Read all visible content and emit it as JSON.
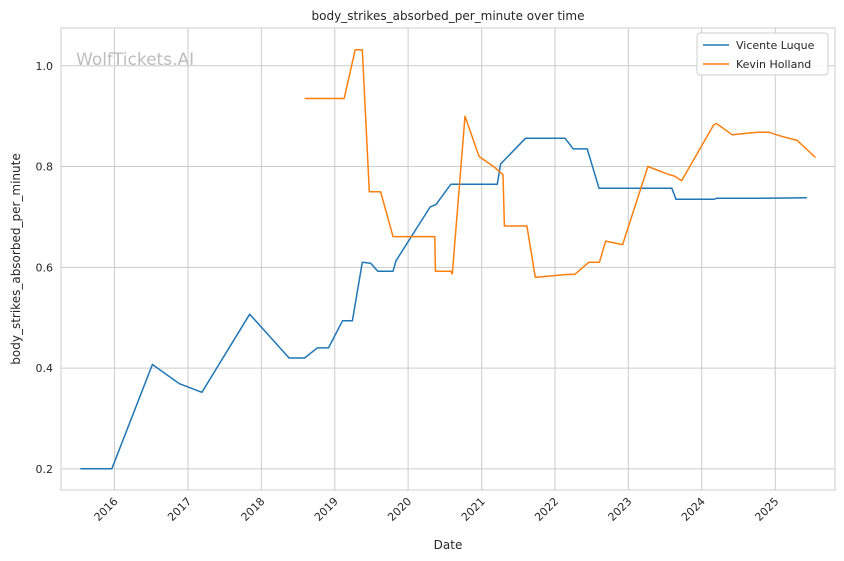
{
  "chart_data": {
    "type": "line",
    "title": "body_strikes_absorbed_per_minute over time",
    "xlabel": "Date",
    "ylabel": "body_strikes_absorbed_per_minute",
    "watermark": "WolfTickets.AI",
    "x_ticks": [
      "2016",
      "2017",
      "2018",
      "2019",
      "2020",
      "2021",
      "2022",
      "2023",
      "2024",
      "2025"
    ],
    "y_ticks": [
      "0.2",
      "0.4",
      "0.6",
      "0.8",
      "1.0"
    ],
    "xlim": [
      "2015-04-10",
      "2025-10-25"
    ],
    "ylim": [
      0.158,
      1.075
    ],
    "grid": true,
    "legend_position": "top-right",
    "series": [
      {
        "name": "Vicente Luque",
        "color": "#1f77b4",
        "points": [
          [
            "2015-07-15",
            0.2
          ],
          [
            "2015-12-19",
            0.2
          ],
          [
            "2016-07-08",
            0.407
          ],
          [
            "2016-11-19",
            0.369
          ],
          [
            "2017-03-11",
            0.352
          ],
          [
            "2017-11-04",
            0.507
          ],
          [
            "2018-05-19",
            0.42
          ],
          [
            "2018-08-04",
            0.42
          ],
          [
            "2018-10-06",
            0.44
          ],
          [
            "2018-12-01",
            0.44
          ],
          [
            "2019-02-09",
            0.494
          ],
          [
            "2019-03-30",
            0.494
          ],
          [
            "2019-05-18",
            0.61
          ],
          [
            "2019-06-29",
            0.608
          ],
          [
            "2019-08-03",
            0.592
          ],
          [
            "2019-10-18",
            0.592
          ],
          [
            "2019-11-02",
            0.613
          ],
          [
            "2020-04-20",
            0.72
          ],
          [
            "2020-05-20",
            0.725
          ],
          [
            "2020-08-01",
            0.765
          ],
          [
            "2021-03-20",
            0.765
          ],
          [
            "2021-04-05",
            0.805
          ],
          [
            "2021-08-07",
            0.856
          ],
          [
            "2022-02-20",
            0.856
          ],
          [
            "2022-04-02",
            0.835
          ],
          [
            "2022-06-10",
            0.835
          ],
          [
            "2022-08-08",
            0.757
          ],
          [
            "2023-08-05",
            0.757
          ],
          [
            "2023-08-26",
            0.735
          ],
          [
            "2024-03-01",
            0.735
          ],
          [
            "2024-03-16",
            0.737
          ],
          [
            "2024-11-01",
            0.737
          ],
          [
            "2025-06-07",
            0.738
          ]
        ]
      },
      {
        "name": "Kevin Holland",
        "color": "#ff7f0e",
        "points": [
          [
            "2018-08-04",
            0.935
          ],
          [
            "2019-02-17",
            0.935
          ],
          [
            "2019-04-13",
            1.032
          ],
          [
            "2019-05-18",
            1.032
          ],
          [
            "2019-06-22",
            0.75
          ],
          [
            "2019-08-17",
            0.75
          ],
          [
            "2019-10-18",
            0.661
          ],
          [
            "2020-05-13",
            0.661
          ],
          [
            "2020-05-16",
            0.592
          ],
          [
            "2020-08-01",
            0.592
          ],
          [
            "2020-08-08",
            0.587
          ],
          [
            "2020-10-10",
            0.9
          ],
          [
            "2020-12-19",
            0.82
          ],
          [
            "2021-03-01",
            0.8
          ],
          [
            "2021-04-17",
            0.784
          ],
          [
            "2021-04-24",
            0.682
          ],
          [
            "2021-08-14",
            0.682
          ],
          [
            "2021-09-25",
            0.58
          ],
          [
            "2022-03-05",
            0.586
          ],
          [
            "2022-04-09",
            0.586
          ],
          [
            "2022-06-18",
            0.61
          ],
          [
            "2022-08-10",
            0.61
          ],
          [
            "2022-09-10",
            0.652
          ],
          [
            "2022-12-03",
            0.645
          ],
          [
            "2023-04-08",
            0.8
          ],
          [
            "2023-07-15",
            0.785
          ],
          [
            "2023-08-19",
            0.781
          ],
          [
            "2023-09-23",
            0.772
          ],
          [
            "2024-03-01",
            0.883
          ],
          [
            "2024-03-16",
            0.885
          ],
          [
            "2024-06-01",
            0.863
          ],
          [
            "2024-10-01",
            0.868
          ],
          [
            "2024-12-01",
            0.868
          ],
          [
            "2025-02-01",
            0.86
          ],
          [
            "2025-04-20",
            0.852
          ],
          [
            "2025-07-20",
            0.818
          ]
        ]
      }
    ]
  }
}
